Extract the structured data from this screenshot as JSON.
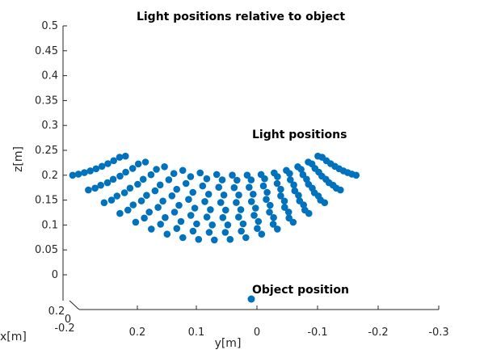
{
  "chart_data": {
    "type": "scatter",
    "title": "Light positions relative to object",
    "xlabel": "x[m]",
    "ylabel": "y[m]",
    "zlabel": "z[m]",
    "z_ticks": [
      "0",
      "0.05",
      "0.1",
      "0.15",
      "0.2",
      "0.25",
      "0.3",
      "0.35",
      "0.4",
      "0.45",
      "0.5"
    ],
    "y_ticks": [
      "0.2",
      "0.1",
      "0",
      "-0.1",
      "-0.2",
      "-0.3"
    ],
    "x_ticks": [
      "0.2",
      "0",
      "-0.2"
    ],
    "zlim": [
      0,
      0.5
    ],
    "ylim": [
      0.3,
      -0.3
    ],
    "grid": false,
    "marker_color": "#0072BD",
    "annotations": {
      "lights": "Light positions",
      "object": "Object position"
    },
    "series": [
      {
        "shape": "dome",
        "rows": [
          {
            "z": 0.07,
            "y_start": 0.28,
            "y_end": -0.28,
            "count": 19
          },
          {
            "z": 0.085,
            "y_start": 0.27,
            "y_end": -0.27,
            "count": 18
          },
          {
            "z": 0.1,
            "y_start": 0.26,
            "y_end": -0.26,
            "count": 18
          },
          {
            "z": 0.115,
            "y_start": 0.25,
            "y_end": -0.25,
            "count": 17
          },
          {
            "z": 0.13,
            "y_start": 0.24,
            "y_end": -0.24,
            "count": 17
          },
          {
            "z": 0.145,
            "y_start": 0.23,
            "y_end": -0.23,
            "count": 16
          },
          {
            "z": 0.16,
            "y_start": 0.22,
            "y_end": -0.22,
            "count": 16
          },
          {
            "z": 0.175,
            "y_start": 0.21,
            "y_end": -0.21,
            "count": 15
          },
          {
            "z": 0.19,
            "y_start": 0.2,
            "y_end": -0.2,
            "count": 15
          },
          {
            "z": 0.2,
            "y_start": 0.19,
            "y_end": -0.19,
            "count": 14
          }
        ]
      },
      {
        "points": [
          {
            "x": 0,
            "y": 0,
            "z": 0
          }
        ]
      }
    ]
  }
}
